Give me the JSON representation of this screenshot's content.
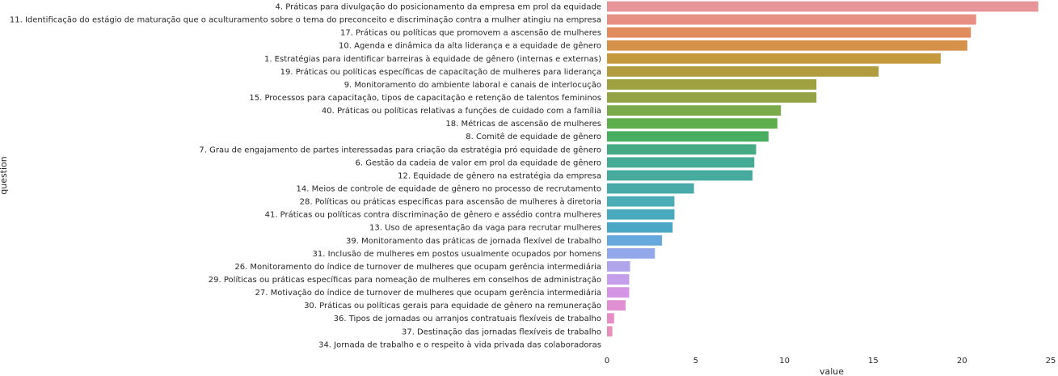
{
  "chart_data": {
    "type": "bar",
    "orientation": "horizontal",
    "xlabel": "value",
    "ylabel": "question",
    "xlim": [
      0,
      25
    ],
    "xticks": [
      0,
      5,
      10,
      15,
      20,
      25
    ],
    "grid": false,
    "categories": [
      "4. Práticas para divulgação do posicionamento da empresa em prol da equidade",
      "11. Identificação do estágio de maturação que o aculturamento sobre o tema do preconceito e discriminação contra a mulher atingiu na empresa",
      "17. Práticas ou políticas que promovem a ascensão de mulheres",
      "10. Agenda e dinâmica da alta liderança e a equidade de gênero",
      "1. Estratégias para identificar barreiras à equidade de gênero (internas e externas)",
      "19. Práticas ou políticas específicas de capacitação de mulheres para liderança",
      "9. Monitoramento do ambiente laboral e canais de interlocução",
      "15. Processos para capacitação, tipos de capacitação e retenção de talentos femininos",
      "40. Práticas ou políticas relativas a funções de cuidado com a família",
      "18. Métricas de ascensão de mulheres",
      "8. Comitê de equidade de gênero",
      "7. Grau de engajamento de partes interessadas para criação da estratégia pró equidade de gênero",
      "6. Gestão da cadeia de valor em prol da equidade de gênero",
      "12. Equidade de gênero na estratégia da empresa",
      "14. Meios de controle de equidade de gênero no processo de recrutamento",
      "28. Políticas ou práticas específicas para ascensão de mulheres à diretoria",
      "41. Práticas ou políticas contra discriminação de gênero e assédio contra mulheres",
      "13. Uso de apresentação da vaga para recrutar mulheres",
      "39. Monitoramento das práticas de jornada flexível de trabalho",
      "31. Inclusão de mulheres em postos usualmente ocupados por homens",
      "26. Monitoramento do índice de turnover de mulheres que ocupam gerência intermediária",
      "29. Políticas ou práticas específicas para nomeação de mulheres em conselhos de administração",
      "27. Motivação do índice de turnover de mulheres que ocupam gerência intermediária",
      "30. Práticas ou políticas gerais para equidade de gênero na remuneração",
      "36. Tipos de jornadas ou arranjos contratuais flexíveis de trabalho",
      "37. Destinação das jornadas flexíveis de trabalho",
      "34. Jornada de trabalho e o respeito à vida privada das colaboradoras"
    ],
    "values": [
      24.3,
      20.8,
      20.5,
      20.3,
      18.8,
      15.3,
      11.8,
      11.8,
      9.8,
      9.6,
      9.1,
      8.4,
      8.3,
      8.2,
      4.9,
      3.8,
      3.8,
      3.7,
      3.1,
      2.7,
      1.3,
      1.25,
      1.25,
      1.05,
      0.4,
      0.3,
      0.0
    ],
    "colors": [
      "#e8949b",
      "#e88f84",
      "#e08c5e",
      "#d5904a",
      "#c59a3c",
      "#b19c40",
      "#9fa141",
      "#94a444",
      "#7aaa49",
      "#5eae4c",
      "#47ae5f",
      "#46ab84",
      "#46ab94",
      "#47aa9e",
      "#48aba9",
      "#4aacb4",
      "#49a9bd",
      "#49a7c5",
      "#66a8dc",
      "#93a8ea",
      "#b0a5ea",
      "#c49deb",
      "#d595e5",
      "#e08fd3",
      "#e68dc6",
      "#e88eba",
      "#e992ae"
    ]
  }
}
